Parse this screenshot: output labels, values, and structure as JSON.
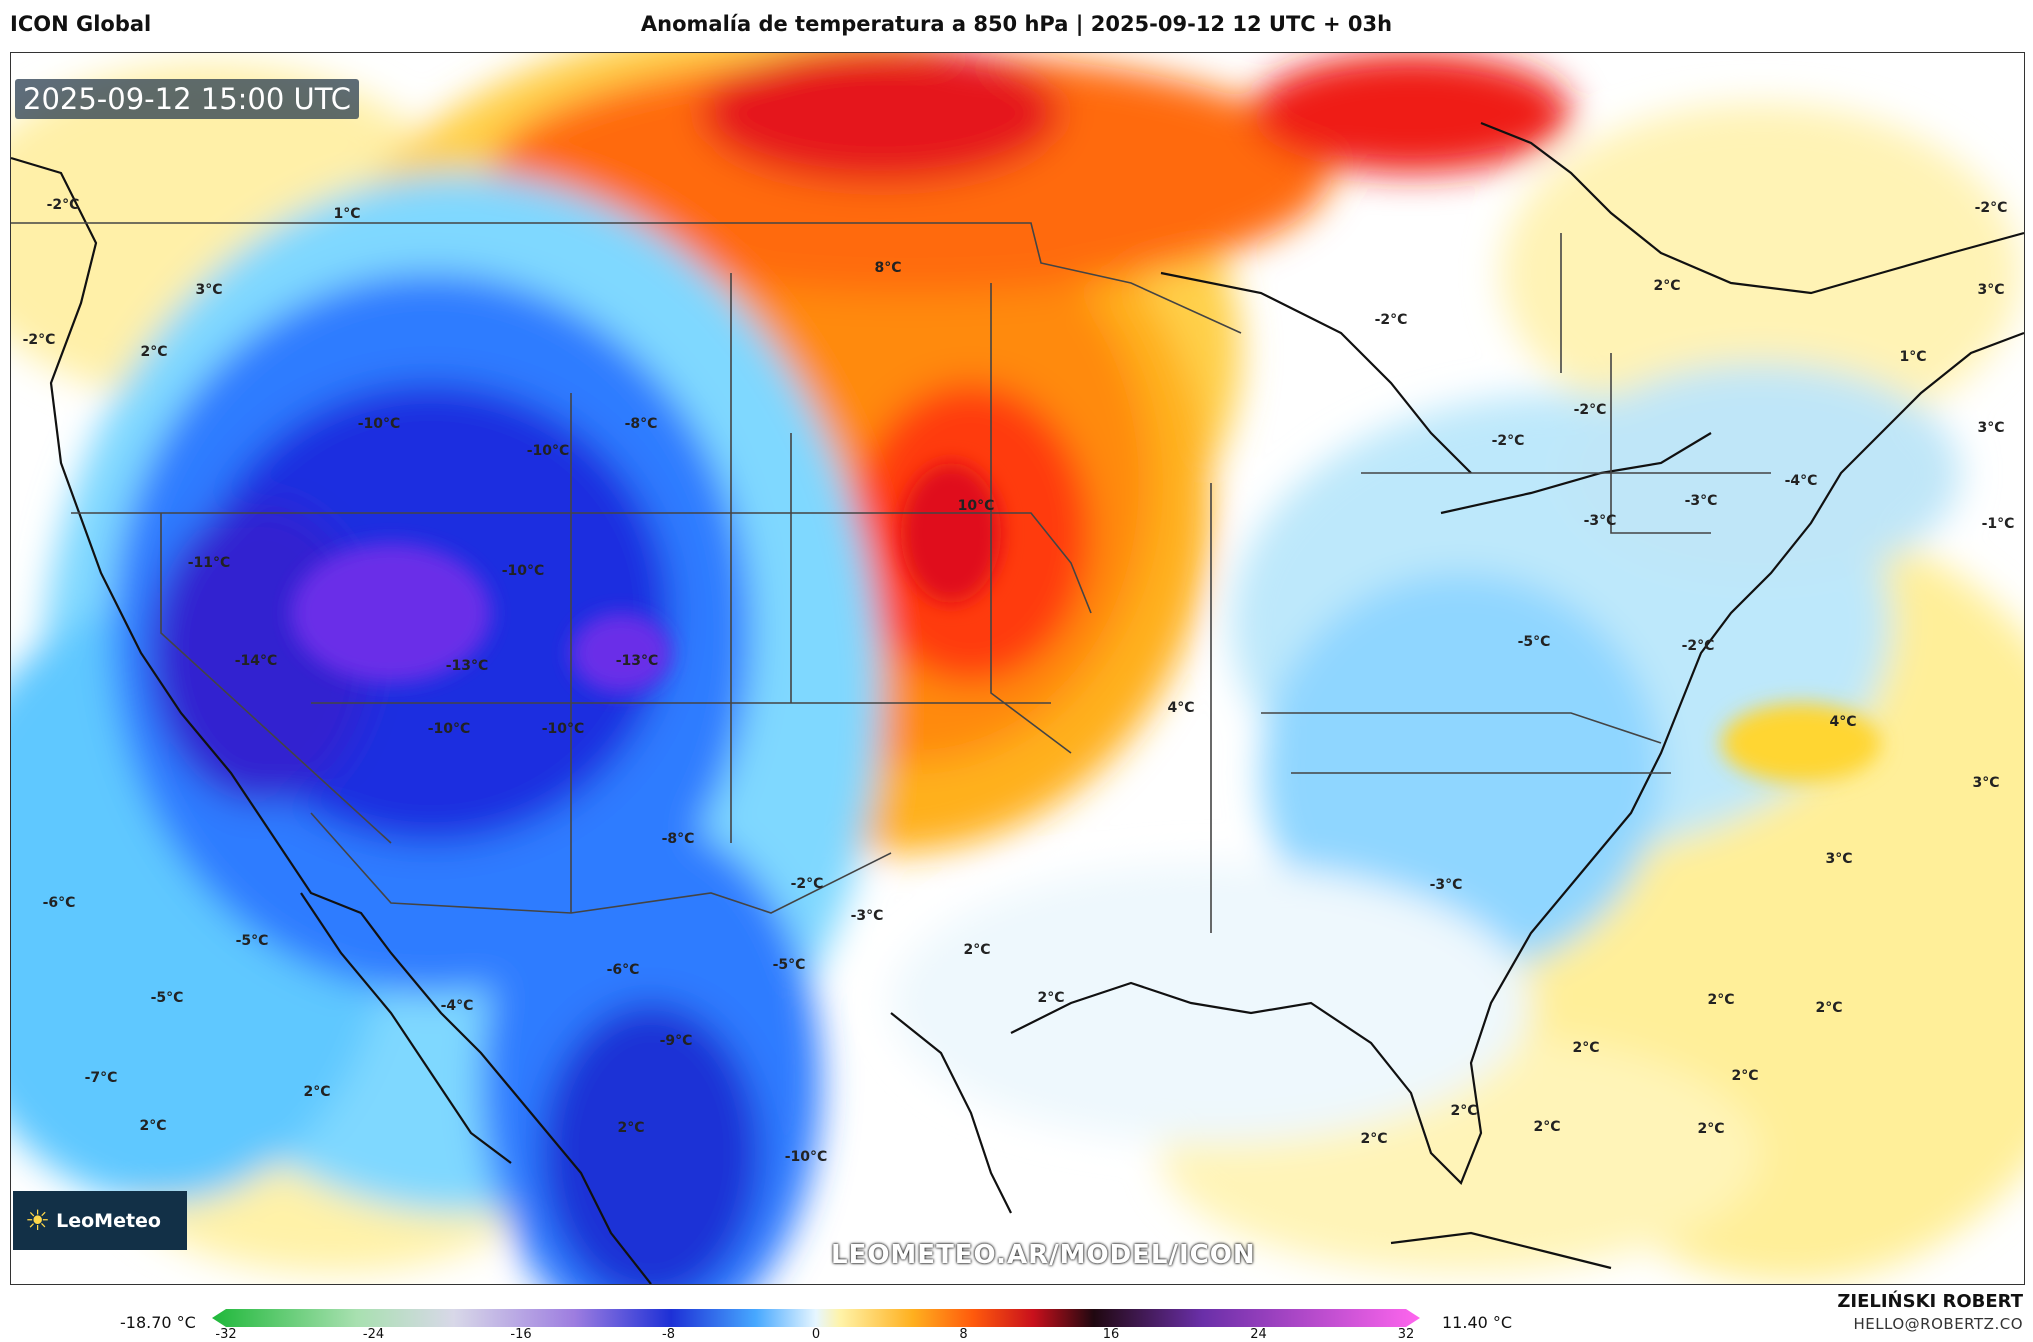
{
  "header": {
    "model": "ICON Global",
    "title": "Anomalía de temperatura a 850 hPa | 2025-09-12 12 UTC + 03h"
  },
  "map": {
    "timestamp": "2025-09-12 15:00 UTC",
    "watermark": "LEOMETEO.AR/MODEL/ICON",
    "logo_text": "LeoMeteo",
    "labels": [
      "1°C",
      "3°C",
      "2°C",
      "-2°C",
      "-2°C",
      "-10°C",
      "-10°C",
      "-8°C",
      "8°C",
      "10°C",
      "-11°C",
      "-10°C",
      "-14°C",
      "-13°C",
      "-13°C",
      "-10°C",
      "-10°C",
      "-8°C",
      "-2°C",
      "4°C",
      "-2°C",
      "-2°C",
      "-2°C",
      "-3°C",
      "-3°C",
      "-4°C",
      "-5°C",
      "-2°C",
      "4°C",
      "3°C",
      "3°C",
      "-3°C",
      "2°C",
      "-2°C",
      "1°C",
      "3°C",
      "3°C",
      "-1°C",
      "-6°C",
      "-5°C",
      "-5°C",
      "-6°C",
      "-5°C",
      "-4°C",
      "-9°C",
      "-7°C",
      "2°C",
      "2°C",
      "-3°C",
      "2°C",
      "2°C",
      "2°C",
      "2°C",
      "2°C",
      "2°C",
      "2°C",
      "2°C",
      "2°C",
      "2°C",
      "-10°C",
      "2°C"
    ]
  },
  "colorbar": {
    "min_label": "-18.70 °C",
    "max_label": "11.40 °C",
    "ticks": [
      "-32",
      "-24",
      "-16",
      "-8",
      "0",
      "8",
      "16",
      "24",
      "32"
    ]
  },
  "footer": {
    "author": "ZIELIŃSKI ROBERT",
    "email": "HELLO@ROBERTZ.CO"
  }
}
